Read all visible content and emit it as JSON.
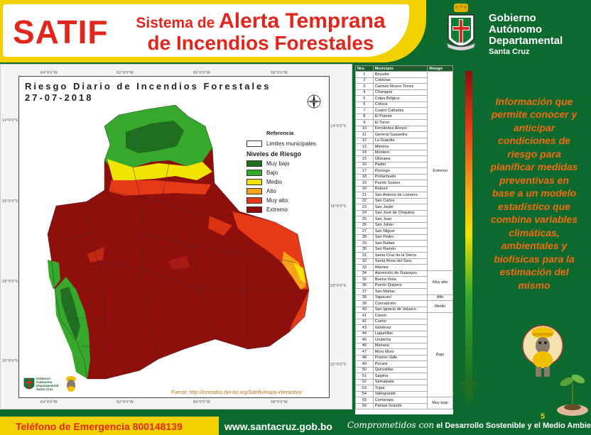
{
  "header": {
    "app_name": "SATIF",
    "title_prefix": "Sistema de",
    "title_emph": "Alerta Temprana",
    "title_line2": "de Incendios Forestales",
    "gov_line1": "Gobierno",
    "gov_line2": "Autónomo",
    "gov_line3": "Departamental",
    "gov_line4": "Santa Cruz"
  },
  "map": {
    "title": "Riesgo Diario de Incendios Forestales",
    "date": "27-07-2018",
    "referencia": "Referencia",
    "limites": "Limites municipales",
    "niveles_title": "Niveles de Riesgo",
    "levels": [
      {
        "label": "Muy bajo",
        "color": "#1f6e1f"
      },
      {
        "label": "Bajo",
        "color": "#36a82c"
      },
      {
        "label": "Medio",
        "color": "#f0e400"
      },
      {
        "label": "Alto",
        "color": "#f7a21b"
      },
      {
        "label": "Muy alto",
        "color": "#e63a17"
      },
      {
        "label": "Extremo",
        "color": "#8f0f0c"
      }
    ],
    "ticks_top": [
      "64°0'0\"W",
      "62°0'0\"W",
      "60°0'0\"W",
      "58°0'0\"W"
    ],
    "ticks_bottom": [
      "64°0'0\"W",
      "62°0'0\"W",
      "60°0'0\"W",
      "58°0'0\"W"
    ],
    "ticks_left": [
      "14°0'0\"S",
      "16°0'0\"S",
      "18°0'0\"S",
      "20°0'0\"S"
    ],
    "ticks_right": [
      "14°0'0\"S",
      "16°0'0\"S",
      "18°0'0\"S",
      "20°0'0\"S"
    ],
    "fuente": "Fuente: http://incendios.fan-bo.org/Satrifo/mapa-interactivo/",
    "logo_gov_1": "Gobierno",
    "logo_gov_2": "Autónomo",
    "logo_gov_3": "Departamental",
    "logo_gov_4": "Santa Cruz"
  },
  "table": {
    "col_nro": "Nro.",
    "col_municipio": "Municipio",
    "col_riesgo": "Riesgo",
    "rows": [
      {
        "n": "1",
        "m": "Boyuibe"
      },
      {
        "n": "2",
        "m": "Cabezas"
      },
      {
        "n": "3",
        "m": "Carmén Rivero Torrez"
      },
      {
        "n": "4",
        "m": "Charagua"
      },
      {
        "n": "5",
        "m": "Colpa Bélgica"
      },
      {
        "n": "6",
        "m": "Cotoca"
      },
      {
        "n": "7",
        "m": "Cuatro Cañadas"
      },
      {
        "n": "8",
        "m": "El Puente"
      },
      {
        "n": "9",
        "m": "El Torno"
      },
      {
        "n": "10",
        "m": "Fernández Alonso"
      },
      {
        "n": "11",
        "m": "General Saavedra"
      },
      {
        "n": "12",
        "m": "La Guardia"
      },
      {
        "n": "13",
        "m": "Mineros"
      },
      {
        "n": "14",
        "m": "Montero"
      },
      {
        "n": "15",
        "m": "Okinawa"
      },
      {
        "n": "16",
        "m": "Pailón"
      },
      {
        "n": "17",
        "m": "Porongo"
      },
      {
        "n": "18",
        "m": "Portachuelo"
      },
      {
        "n": "19",
        "m": "Puerto Suárez"
      },
      {
        "n": "20",
        "m": "Roboré"
      },
      {
        "n": "21",
        "m": "San Antonio de Lomerío"
      },
      {
        "n": "22",
        "m": "San Carlos"
      },
      {
        "n": "23",
        "m": "San Javier"
      },
      {
        "n": "24",
        "m": "San José de Chiquitos"
      },
      {
        "n": "25",
        "m": "San Juan"
      },
      {
        "n": "26",
        "m": "San Julián"
      },
      {
        "n": "27",
        "m": "San Miguel"
      },
      {
        "n": "28",
        "m": "San Pedro"
      },
      {
        "n": "29",
        "m": "San Rafael"
      },
      {
        "n": "30",
        "m": "San Ramón"
      },
      {
        "n": "31",
        "m": "Santa Cruz de la Sierra"
      },
      {
        "n": "32",
        "m": "Santa Rosa del Sara"
      },
      {
        "n": "33",
        "m": "Warnes"
      },
      {
        "n": "34",
        "m": "Ascención de Guarayos"
      },
      {
        "n": "35",
        "m": "Buena Vista"
      },
      {
        "n": "36",
        "m": "Puerto Quijarro"
      },
      {
        "n": "37",
        "m": "San Matías"
      },
      {
        "n": "38",
        "m": "Yapacaní"
      },
      {
        "n": "39",
        "m": "Concepción"
      },
      {
        "n": "40",
        "m": "San Ignacio de Velasco"
      },
      {
        "n": "41",
        "m": "Camiri"
      },
      {
        "n": "42",
        "m": "Cuevo"
      },
      {
        "n": "43",
        "m": "Gutiérrez"
      },
      {
        "n": "44",
        "m": "Lagunillas"
      },
      {
        "n": "45",
        "m": "Urubichá"
      },
      {
        "n": "46",
        "m": "Mairana"
      },
      {
        "n": "47",
        "m": "Moro Moro"
      },
      {
        "n": "48",
        "m": "Postrer Valle"
      },
      {
        "n": "49",
        "m": "Pucará"
      },
      {
        "n": "50",
        "m": "Quirusillas"
      },
      {
        "n": "51",
        "m": "Saipina"
      },
      {
        "n": "52",
        "m": "Samaipata"
      },
      {
        "n": "53",
        "m": "Trigal"
      },
      {
        "n": "54",
        "m": "Vallegrande"
      },
      {
        "n": "55",
        "m": "Comarapa"
      },
      {
        "n": "56",
        "m": "Pampa Grande"
      }
    ],
    "risk_groups": [
      {
        "label": "Extremo",
        "span": 33
      },
      {
        "label": "Muy alto",
        "span": 4
      },
      {
        "label": "Alto",
        "span": 1
      },
      {
        "label": "Medio",
        "span": 2
      },
      {
        "label": "Bajo",
        "span": 14
      },
      {
        "label": "Muy bajo",
        "span": 2
      }
    ]
  },
  "info": {
    "text": "Información que permite conocer y anticipar condiciones de riesgo para planificar medidas preventivas en base a un modelo estadístico que combina variables climáticas, ambientales y biofísicas para la estimación del mismo"
  },
  "page_number": "5",
  "footer": {
    "phone": "Teléfono de Emergencia 800148139",
    "website": "www.santacruz.gob.bo",
    "slogan_script": "Comprometidos con",
    "slogan_rest": "el Desarrollo Sostenible y el Medio Ambiente"
  },
  "colors": {
    "brand_red": "#e2261b",
    "brand_yellow": "#f2d100",
    "brand_green": "#0d6a2f",
    "info_orange": "#f26a12"
  }
}
